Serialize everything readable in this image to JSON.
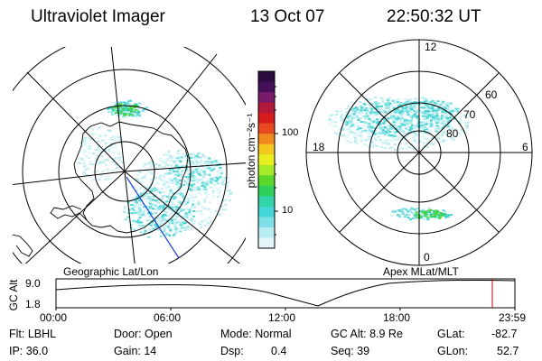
{
  "header": {
    "instrument": "Ultraviolet Imager",
    "date": "13 Oct 07",
    "time": "22:50:32 UT"
  },
  "colorbar": {
    "unit": "photon cm⁻²s⁻¹",
    "ticks": [
      "100",
      "10"
    ],
    "colors": [
      "#2b0a3d",
      "#44105a",
      "#7a1a6a",
      "#b01a3a",
      "#d81b1b",
      "#e84a1f",
      "#f08a1f",
      "#f5c81f",
      "#e8ee20",
      "#a6ea2a",
      "#5ad82a",
      "#2ecf5a",
      "#33d4a8",
      "#45d6d8",
      "#7ee0e6",
      "#b8ecf0",
      "#e2f6f8"
    ]
  },
  "left_map": {
    "label": "Geographic Lat/Lon",
    "colors": {
      "aurora_faint": "#bfeff2",
      "aurora_mid": "#56d9d9",
      "aurora_bright": "#3ccf8a",
      "coast": "#000000",
      "meridian": "#1f3fd6"
    }
  },
  "right_map": {
    "label": "Apex MLat/MLT",
    "lat_labels": [
      "60",
      "70",
      "80"
    ],
    "mlt_labels": {
      "top": "12",
      "bottom": "0",
      "left": "18",
      "right": "6"
    }
  },
  "altitude_plot": {
    "ylabel": "GC Alt",
    "yticks": [
      "9.0",
      "1.8"
    ],
    "xticks": [
      "00:00",
      "06:00",
      "12:00",
      "18:00",
      "23:59"
    ],
    "marker_color": "#cc0000"
  },
  "footer": {
    "filter": "Flt: LBHL",
    "ip": "IP: 36.0",
    "door": "Door: Open",
    "gain": "Gain: 14",
    "mode": "Mode: Normal",
    "dsp_label": "Dsp:",
    "dsp_value": "0.4",
    "gc_alt": "GC Alt: 8.9 Re",
    "seq": "Seq: 39",
    "glat_label": "GLat:",
    "glat_value": "-82.7",
    "glon_label": "GLon:",
    "glon_value": "52.7"
  }
}
